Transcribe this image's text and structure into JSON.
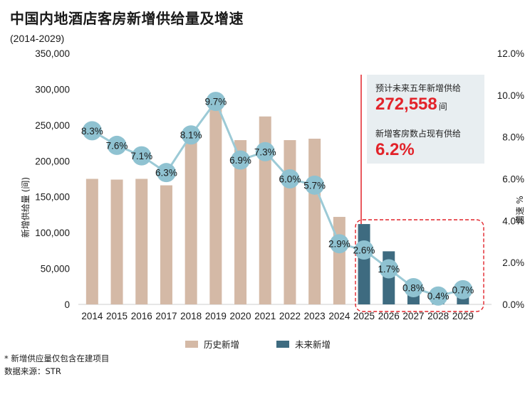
{
  "header": {
    "title": "中国内地酒店客房新增供给量及增速",
    "subtitle": "(2014-2029)"
  },
  "callout": {
    "label1": "预计未来五年新增供给",
    "value1": "272,558",
    "unit1": "间",
    "label2": "新增客房数占现有供给",
    "value2": "6.2%"
  },
  "legend": {
    "historical": "历史新增",
    "future": "未来新增"
  },
  "footer": {
    "footnote": "* 新增供应量仅包含在建项目",
    "source": "数据来源：STR"
  },
  "colors": {
    "historical": "#d4b9a6",
    "future": "#3e6b80",
    "line": "#9ccad6",
    "marker": "#8fc2d1",
    "accent": "#e2232a",
    "axis": "#cccccc"
  },
  "chart_data": {
    "type": "bar",
    "title": "中国内地酒店客房新增供给量及增速",
    "categories": [
      "2014",
      "2015",
      "2016",
      "2017",
      "2018",
      "2019",
      "2020",
      "2021",
      "2022",
      "2023",
      "2024",
      "2025",
      "2026",
      "2027",
      "2028",
      "2029"
    ],
    "series": [
      {
        "name": "新增供给量 (间)",
        "type": "bar",
        "values": [
          175000,
          174000,
          175000,
          166000,
          238000,
          275000,
          229000,
          262000,
          229000,
          231000,
          122000,
          112000,
          74000,
          34000,
          20000,
          31000
        ],
        "category_kind": [
          "历史新增",
          "历史新增",
          "历史新增",
          "历史新增",
          "历史新增",
          "历史新增",
          "历史新增",
          "历史新增",
          "历史新增",
          "历史新增",
          "历史新增",
          "未来新增",
          "未来新增",
          "未来新增",
          "未来新增",
          "未来新增"
        ]
      },
      {
        "name": "增速 %",
        "type": "line",
        "values": [
          8.3,
          7.6,
          7.1,
          6.3,
          8.1,
          9.7,
          6.9,
          7.3,
          6.0,
          5.7,
          2.9,
          2.6,
          1.7,
          0.8,
          0.4,
          0.7
        ],
        "labels": [
          "8.3%",
          "7.6%",
          "7.1%",
          "6.3%",
          "8.1%",
          "9.7%",
          "6.9%",
          "7.3%",
          "6.0%",
          "5.7%",
          "2.9%",
          "2.6%",
          "1.7%",
          "0.8%",
          "0.4%",
          "0.7%"
        ]
      }
    ],
    "y_left": {
      "label": "新增供给量 (间)",
      "ylim": [
        0,
        350000
      ],
      "ticks": [
        "0",
        "50,000",
        "100,000",
        "150,000",
        "200,000",
        "250,000",
        "300,000",
        "350,000"
      ]
    },
    "y_right": {
      "label": "增速 %",
      "ylim": [
        0,
        12
      ],
      "ticks": [
        "0.0%",
        "2.0%",
        "4.0%",
        "6.0%",
        "8.0%",
        "10.0%",
        "12.0%"
      ]
    },
    "legend_position": "bottom"
  }
}
